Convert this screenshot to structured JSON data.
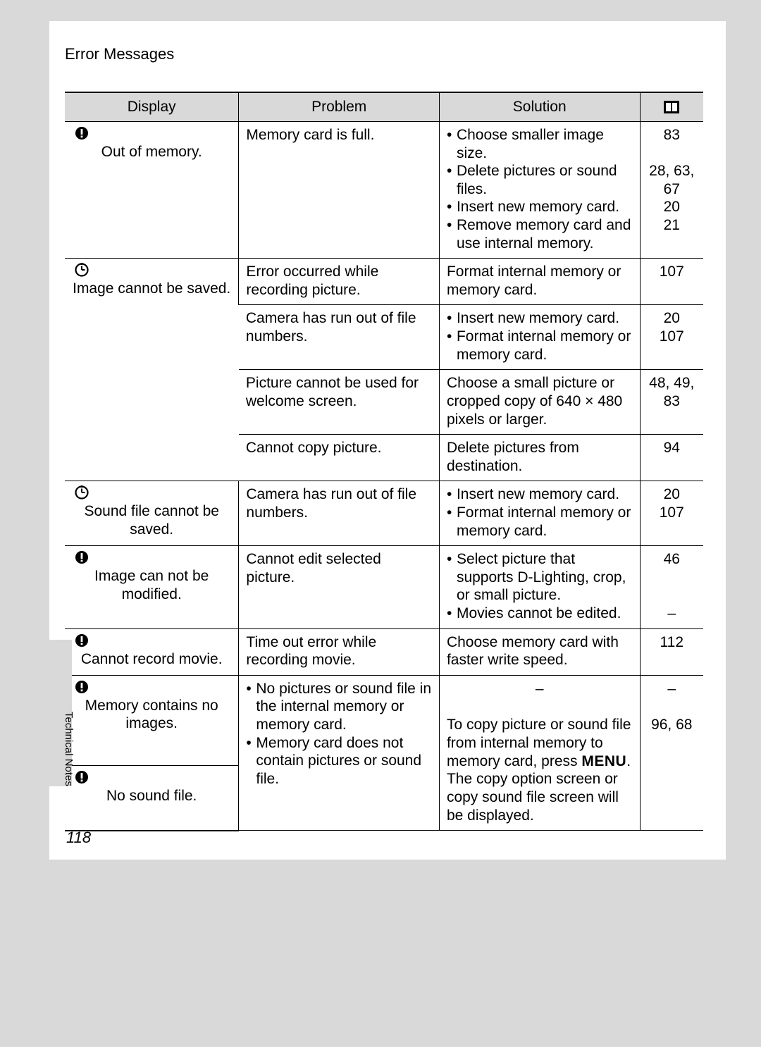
{
  "header": "Error Messages",
  "side_label": "Technical Notes",
  "page_number": "118",
  "columns": {
    "c1": "Display",
    "c2": "Problem",
    "c3": "Solution",
    "c4_icon": "reference-icon"
  },
  "rows": [
    {
      "display_icon": "warning-icon",
      "display_text": "Out of memory.",
      "problem": "Memory card is full.",
      "solution_list": [
        "Choose smaller image size.",
        "Delete pictures or sound files.",
        "Insert new memory card.",
        "Remove memory card and use internal memory."
      ],
      "pages": "83\n\n28, 63, 67\n20\n21"
    },
    {
      "display_icon": "clock-warning-icon",
      "display_text": "Image cannot be saved.",
      "display_rowspan": 4,
      "problem": "Error occurred while recording picture.",
      "solution_text": "Format internal memory or memory card.",
      "pages": "107"
    },
    {
      "problem": "Camera has run out of file numbers.",
      "solution_list": [
        "Insert new memory card.",
        "Format internal memory or memory card."
      ],
      "pages": "20\n107"
    },
    {
      "problem": "Picture cannot be used for welcome screen.",
      "solution_text": "Choose a small picture or cropped copy of 640 × 480 pixels or larger.",
      "pages": "48, 49, 83"
    },
    {
      "problem": "Cannot copy picture.",
      "solution_text": "Delete pictures from destination.",
      "pages": "94"
    },
    {
      "display_icon": "clock-warning-icon",
      "display_text": "Sound file cannot be saved.",
      "problem": "Camera has run out of file numbers.",
      "solution_list": [
        "Insert new memory card.",
        "Format internal memory or memory card."
      ],
      "pages": "20\n107"
    },
    {
      "display_icon": "warning-icon",
      "display_text": "Image can not be modified.",
      "problem": "Cannot edit selected picture.",
      "solution_list": [
        "Select picture that supports D-Lighting, crop, or small picture.",
        "Movies cannot be edited."
      ],
      "pages": "46\n\n\n–"
    },
    {
      "display_icon": "warning-icon",
      "display_text": "Cannot record movie.",
      "problem": "Time out error while recording movie.",
      "solution_text": "Choose memory card with faster write speed.",
      "pages": "112"
    },
    {
      "display_icon": "warning-icon",
      "display_text": "Memory contains no images.",
      "problem_list": [
        "No pictures or sound file in the internal memory or memory card.",
        "Memory card does not contain pictures or sound file."
      ],
      "problem_rowspan": 2,
      "solution_text_pre": "–\n",
      "solution_text_main": "To copy picture or sound file from internal memory to memory card, press ",
      "solution_menu": "MENU",
      "solution_text_post": ". The copy option screen or copy sound file screen will be displayed.",
      "solution_rowspan": 2,
      "pages": "–\n\n96, 68",
      "pages_rowspan": 2
    },
    {
      "display_icon": "warning-icon",
      "display_text": "No sound file."
    }
  ],
  "icons": {
    "warning-icon": "⚠",
    "clock-warning-icon": "⏱"
  }
}
